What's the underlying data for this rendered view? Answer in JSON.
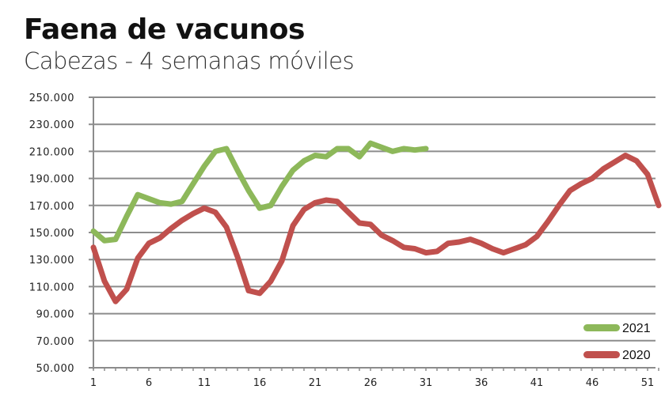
{
  "header": {
    "title": "Faena de vacunos",
    "subtitle": "Cabezas - 4 semanas móviles"
  },
  "chart_data": {
    "type": "line",
    "title": "Faena de vacunos",
    "subtitle": "Cabezas - 4 semanas móviles",
    "xlabel": "",
    "ylabel": "",
    "ylim": [
      50000,
      250000
    ],
    "xlim": [
      1,
      52
    ],
    "y_ticks": [
      50000,
      70000,
      90000,
      110000,
      130000,
      150000,
      170000,
      190000,
      210000,
      230000,
      250000
    ],
    "y_tick_labels": [
      "50.000",
      "70.000",
      "90.000",
      "110.000",
      "130.000",
      "150.000",
      "170.000",
      "190.000",
      "210.000",
      "230.000",
      "250.000"
    ],
    "x_ticks": [
      1,
      6,
      11,
      16,
      21,
      26,
      31,
      36,
      41,
      46,
      51
    ],
    "x_tick_labels": [
      "1",
      "6",
      "11",
      "16",
      "21",
      "26",
      "31",
      "36",
      "41",
      "46",
      "51"
    ],
    "grid": true,
    "legend_position": "lower right",
    "series": [
      {
        "name": "2021",
        "color": "#8db85a",
        "x": [
          1,
          2,
          3,
          4,
          5,
          6,
          7,
          8,
          9,
          10,
          11,
          12,
          13,
          14,
          15,
          16,
          17,
          18,
          19,
          20,
          21,
          22,
          23,
          24,
          25,
          26,
          27,
          28,
          29,
          30,
          31
        ],
        "values": [
          151000,
          144000,
          145000,
          162000,
          178000,
          175000,
          172000,
          171000,
          173000,
          186000,
          199000,
          210000,
          212000,
          196000,
          181000,
          168000,
          170000,
          184000,
          196000,
          203000,
          207000,
          206000,
          212000,
          212000,
          206000,
          216000,
          213000,
          210000,
          212000,
          211000,
          212000
        ]
      },
      {
        "name": "2020",
        "color": "#c0504d",
        "x": [
          1,
          2,
          3,
          4,
          5,
          6,
          7,
          8,
          9,
          10,
          11,
          12,
          13,
          14,
          15,
          16,
          17,
          18,
          19,
          20,
          21,
          22,
          23,
          24,
          25,
          26,
          27,
          28,
          29,
          30,
          31,
          32,
          33,
          34,
          35,
          36,
          37,
          38,
          39,
          40,
          41,
          42,
          43,
          44,
          45,
          46,
          47,
          48,
          49,
          50,
          51,
          52
        ],
        "values": [
          139000,
          114000,
          99000,
          108000,
          131000,
          142000,
          146000,
          153000,
          159000,
          164000,
          168000,
          165000,
          154000,
          132000,
          107000,
          105000,
          114000,
          129000,
          155000,
          167000,
          172000,
          174000,
          173000,
          165000,
          157000,
          156000,
          148000,
          144000,
          139000,
          138000,
          135000,
          136000,
          142000,
          143000,
          145000,
          142000,
          138000,
          135000,
          138000,
          141000,
          147000,
          158000,
          170000,
          181000,
          186000,
          190000,
          197000,
          202000,
          207000,
          203000,
          193000,
          170000
        ]
      }
    ]
  },
  "legend": {
    "items": [
      {
        "label": "2021",
        "color": "#8db85a"
      },
      {
        "label": "2020",
        "color": "#c0504d"
      }
    ]
  }
}
